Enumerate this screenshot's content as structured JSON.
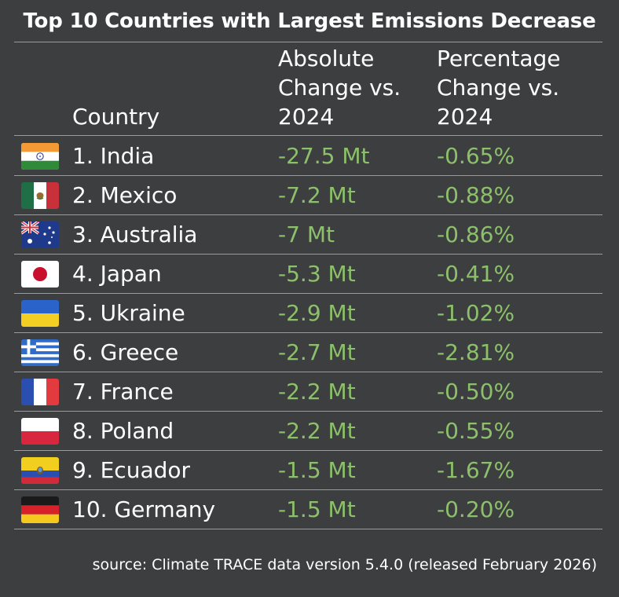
{
  "chart_data": {
    "type": "table",
    "title": "Top 10 Countries with Largest Emissions Decrease",
    "columns": {
      "country": "Country",
      "absolute": "Absolute Change vs. 2024",
      "absolute_lines": [
        "Absolute",
        "Change vs.",
        "2024"
      ],
      "percentage": "Percentage Change vs. 2024",
      "percentage_lines": [
        "Percentage",
        "Change vs.",
        "2024"
      ]
    },
    "rows": [
      {
        "label": "1. India",
        "country": "India",
        "flag": "india-flag",
        "absolute": "-27.5 Mt",
        "absolute_value": -27.5,
        "percentage": "-0.65%",
        "percentage_value": -0.65
      },
      {
        "label": "2. Mexico",
        "country": "Mexico",
        "flag": "mexico-flag",
        "absolute": "-7.2 Mt",
        "absolute_value": -7.2,
        "percentage": "-0.88%",
        "percentage_value": -0.88
      },
      {
        "label": "3. Australia",
        "country": "Australia",
        "flag": "australia-flag",
        "absolute": "-7 Mt",
        "absolute_value": -7,
        "percentage": "-0.86%",
        "percentage_value": -0.86
      },
      {
        "label": "4. Japan",
        "country": "Japan",
        "flag": "japan-flag",
        "absolute": "-5.3 Mt",
        "absolute_value": -5.3,
        "percentage": "-0.41%",
        "percentage_value": -0.41
      },
      {
        "label": "5. Ukraine",
        "country": "Ukraine",
        "flag": "ukraine-flag",
        "absolute": "-2.9 Mt",
        "absolute_value": -2.9,
        "percentage": "-1.02%",
        "percentage_value": -1.02
      },
      {
        "label": "6. Greece",
        "country": "Greece",
        "flag": "greece-flag",
        "absolute": "-2.7 Mt",
        "absolute_value": -2.7,
        "percentage": "-2.81%",
        "percentage_value": -2.81
      },
      {
        "label": "7. France",
        "country": "France",
        "flag": "france-flag",
        "absolute": "-2.2 Mt",
        "absolute_value": -2.2,
        "percentage": "-0.50%",
        "percentage_value": -0.5
      },
      {
        "label": "8. Poland",
        "country": "Poland",
        "flag": "poland-flag",
        "absolute": "-2.2 Mt",
        "absolute_value": -2.2,
        "percentage": "-0.55%",
        "percentage_value": -0.55
      },
      {
        "label": "9. Ecuador",
        "country": "Ecuador",
        "flag": "ecuador-flag",
        "absolute": "-1.5 Mt",
        "absolute_value": -1.5,
        "percentage": "-1.67%",
        "percentage_value": -1.67
      },
      {
        "label": "10. Germany",
        "country": "Germany",
        "flag": "germany-flag",
        "absolute": "-1.5 Mt",
        "absolute_value": -1.5,
        "percentage": "-0.20%",
        "percentage_value": -0.2
      }
    ],
    "source": "source: Climate TRACE data version 5.4.0 (released February 2026)"
  },
  "colors": {
    "background": "#3d3e40",
    "text": "#ffffff",
    "value_text": "#8cc06a",
    "rule": "#9a9b9e"
  }
}
